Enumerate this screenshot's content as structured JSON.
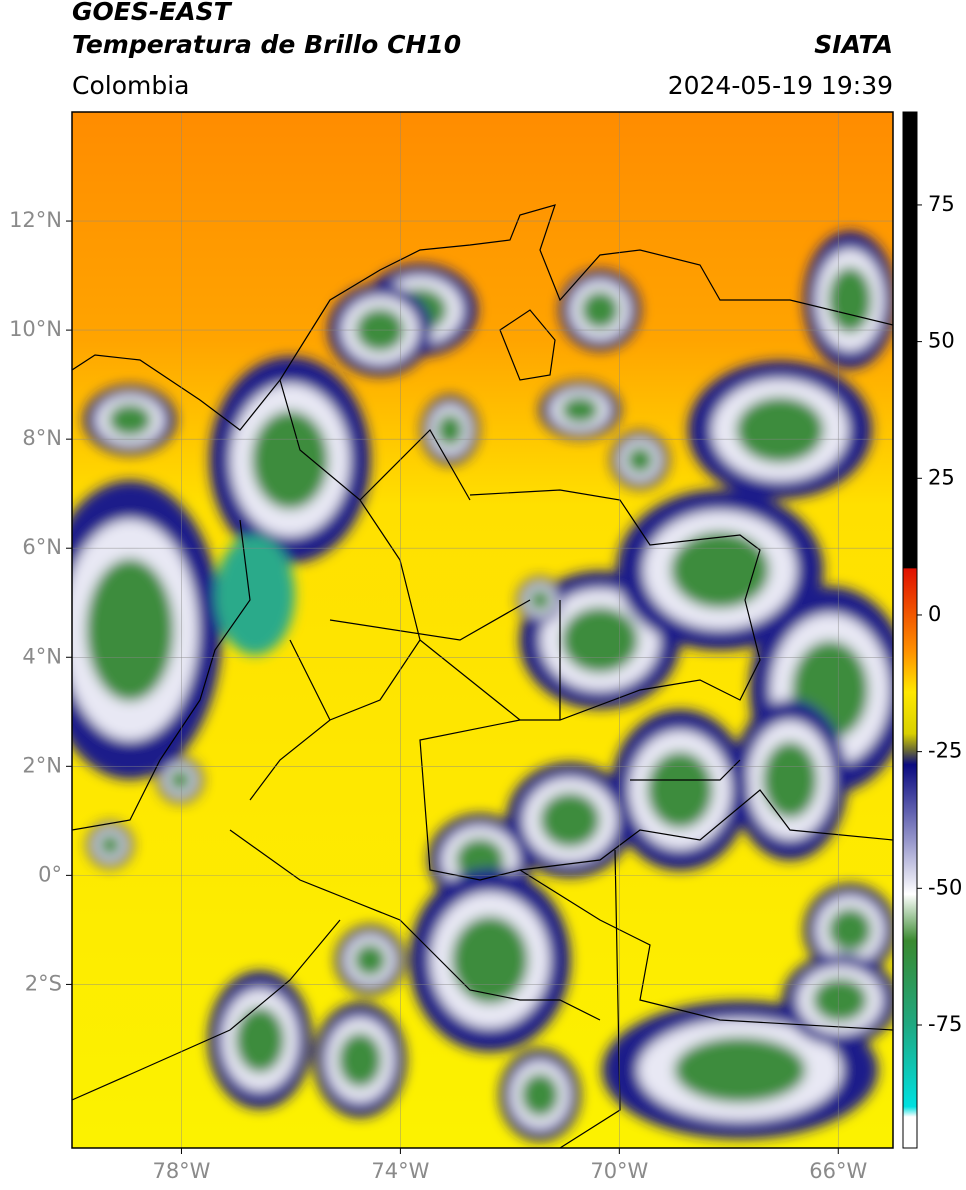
{
  "header": {
    "title": "GOES-EAST",
    "subtitle": "Temperatura de Brillo CH10",
    "region": "Colombia",
    "source": "SIATA",
    "datetime": "2024-05-19 19:39"
  },
  "map": {
    "xlim": [
      -80,
      -65
    ],
    "ylim": [
      -5,
      14
    ],
    "lon_ticks": [
      {
        "value": -78,
        "label": "78°W"
      },
      {
        "value": -74,
        "label": "74°W"
      },
      {
        "value": -70,
        "label": "70°W"
      },
      {
        "value": -66,
        "label": "66°W"
      }
    ],
    "lat_ticks": [
      {
        "value": 12,
        "label": "12°N"
      },
      {
        "value": 10,
        "label": "10°N"
      },
      {
        "value": 8,
        "label": "8°N"
      },
      {
        "value": 6,
        "label": "6°N"
      },
      {
        "value": 4,
        "label": "4°N"
      },
      {
        "value": 2,
        "label": "2°N"
      },
      {
        "value": 0,
        "label": "0°"
      },
      {
        "value": -2,
        "label": "2°S"
      }
    ]
  },
  "colorbar": {
    "lim": [
      -97.5,
      92
    ],
    "ticks": [
      75,
      50,
      25,
      0,
      -25,
      -50,
      -75
    ]
  }
}
